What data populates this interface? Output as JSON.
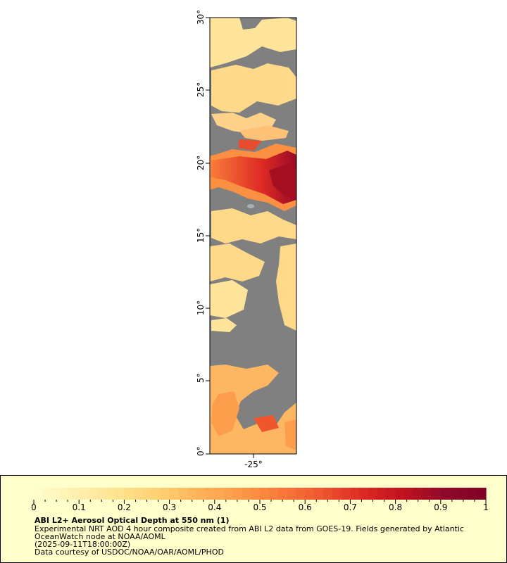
{
  "map": {
    "lat_labels": [
      "0°",
      "5°",
      "10°",
      "15°",
      "20°",
      "25°",
      "30°"
    ],
    "lon_labels": [
      "-25°"
    ],
    "land_color": "#808080",
    "cloud_color": "#a9b0bd"
  },
  "colorbar": {
    "ticks": [
      "0",
      "0.1",
      "0.2",
      "0.3",
      "0.4",
      "0.5",
      "0.6",
      "0.7",
      "0.8",
      "0.9",
      "1"
    ],
    "colors": [
      "#ffffcc",
      "#fff0b0",
      "#fee490",
      "#fed074",
      "#fdb45a",
      "#fc9a48",
      "#f97a3a",
      "#ef5530",
      "#dd2a24",
      "#c0111f",
      "#8f0a2a",
      "#800026"
    ]
  },
  "legend": {
    "title": "ABI L2+ Aerosol Optical Depth at 550 nm (1)",
    "line1": "Experimental NRT AOD 4 hour composite created from ABI L2 data from GOES-19. Fields generated by Atlantic",
    "line2": "OceanWatch node at NOAA/AOML",
    "line3": "(2025-09-11T18:00:00Z)",
    "line4": "Data courtesy of USDOC/NOAA/OAR/AOML/PHOD"
  }
}
